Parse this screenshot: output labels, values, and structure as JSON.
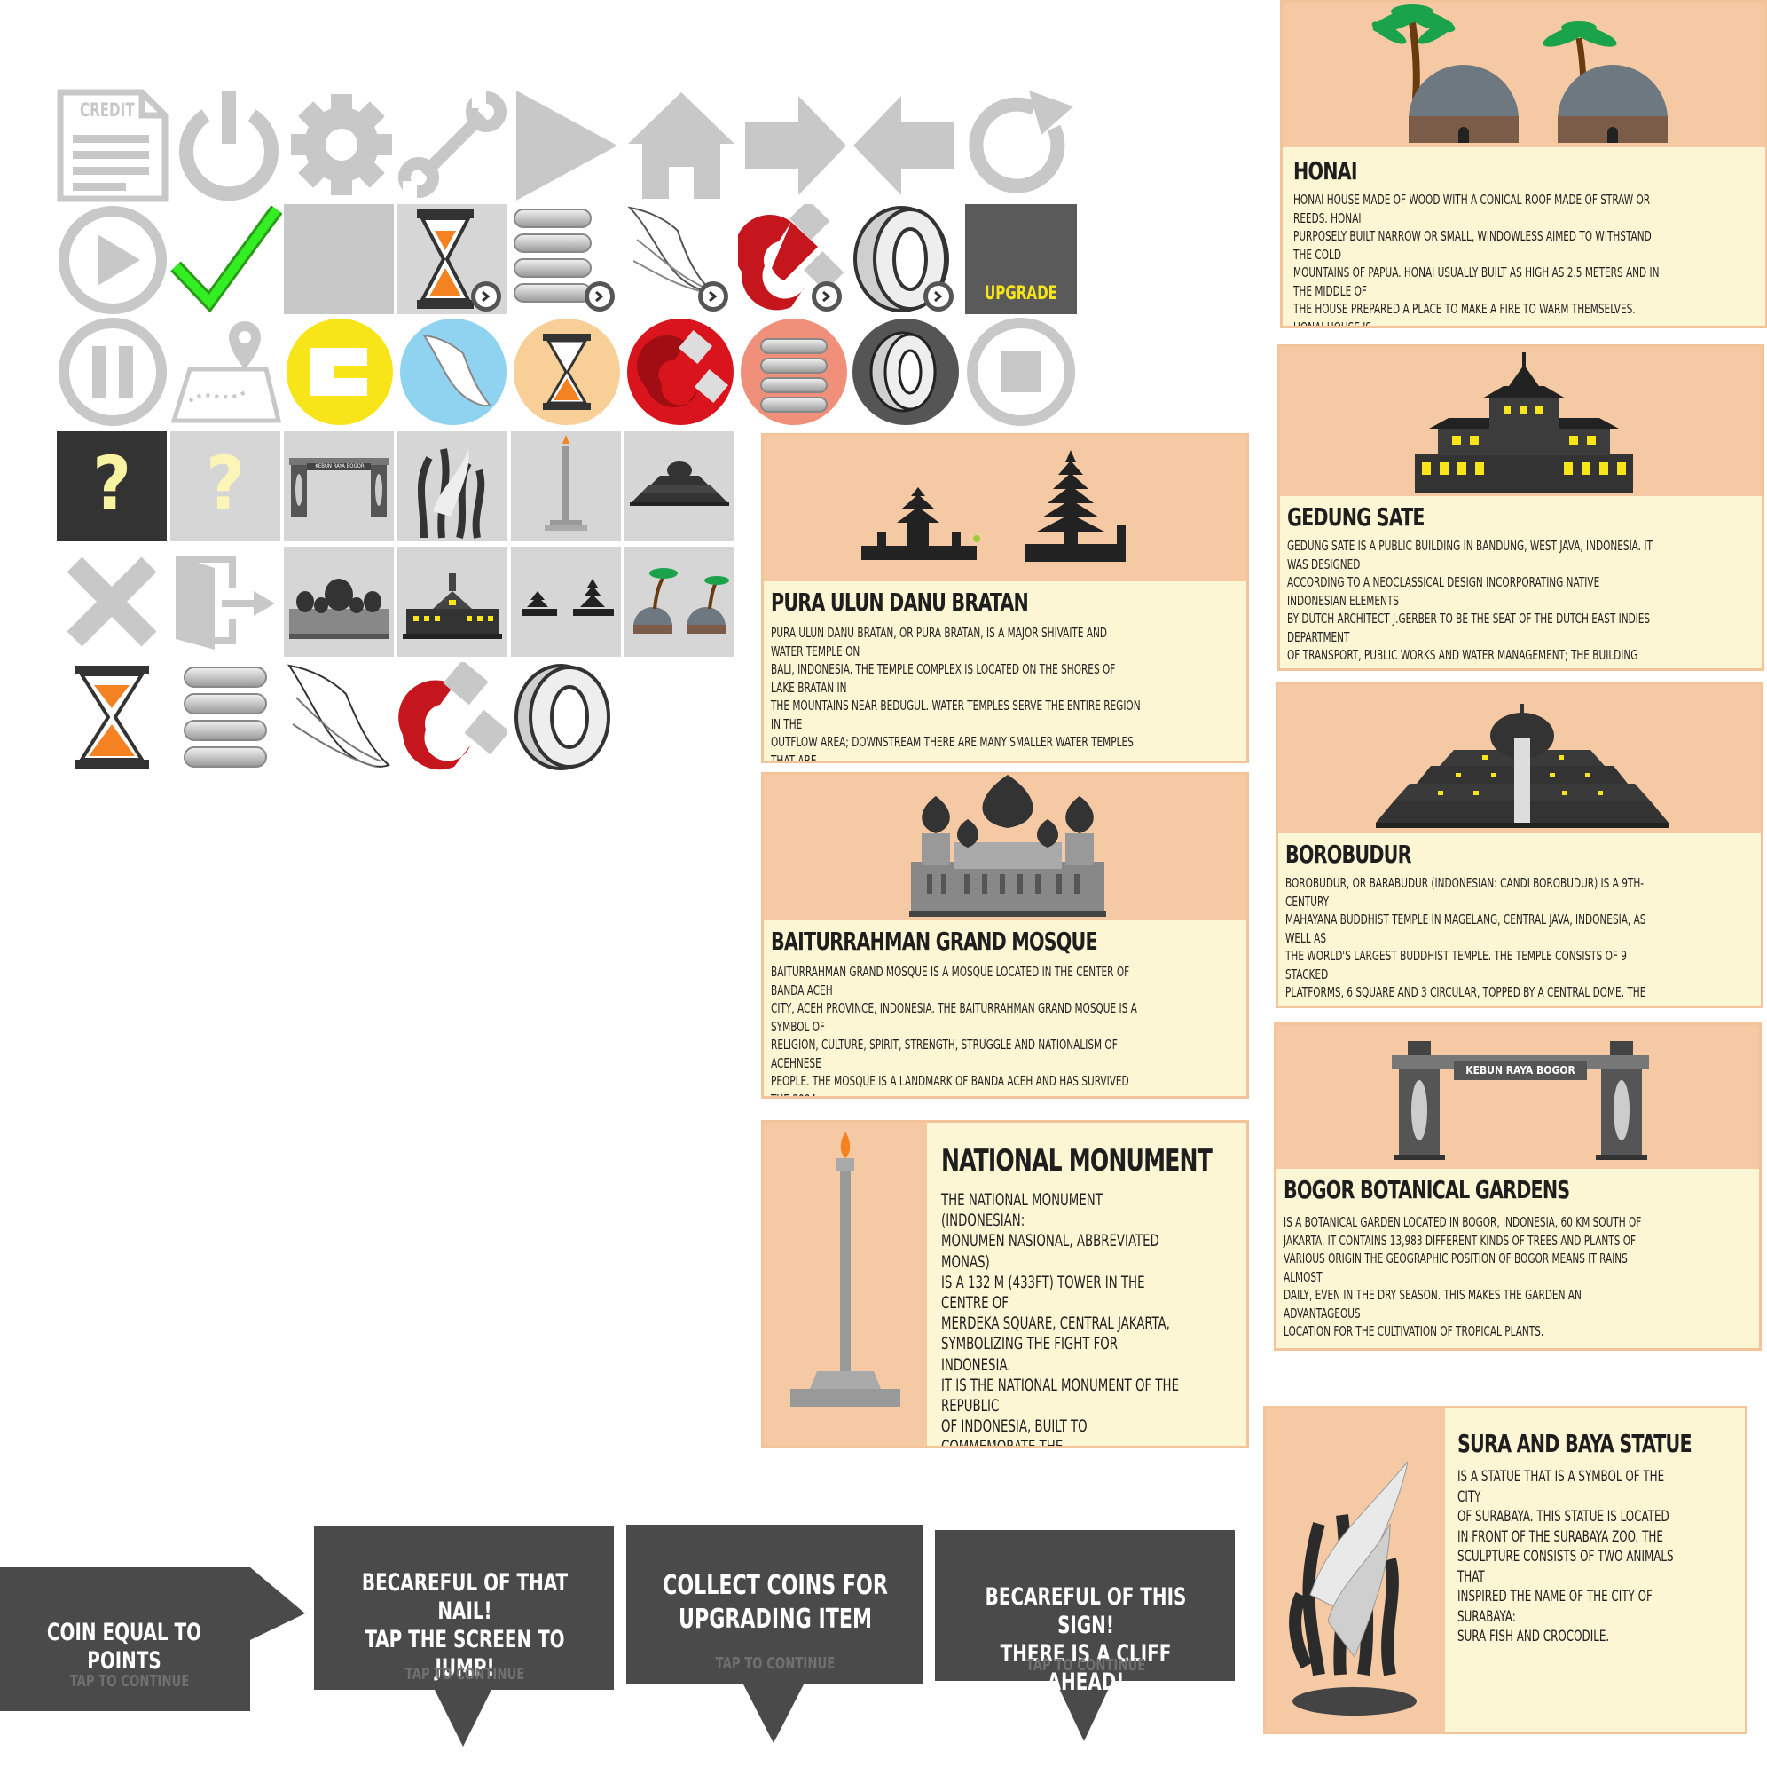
{
  "icons": {
    "credit_label": "CREDIT",
    "upgrade_label": "UPGRADE",
    "question_mark": "?",
    "colors": {
      "gray": "#c8c8c8",
      "dark": "#555555",
      "green": "#33dd22",
      "orange": "#f58220",
      "red": "#c4161c",
      "yellow": "#f7e51a",
      "sky": "#8fd3f0",
      "peach": "#f7cf97",
      "salmon": "#f0907a"
    }
  },
  "thumbnails": {
    "bogor_gate_label": "KEBUN RAYA BOGOR"
  },
  "cards": {
    "honai": {
      "title": "HONAI",
      "text": "HONAI HOUSE MADE OF WOOD WITH A CONICAL ROOF MADE OF STRAW OR REEDS. HONAI\nPURPOSELY BUILT NARROW OR SMALL, WINDOWLESS AIMED TO WITHSTAND THE COLD\nMOUNTAINS OF PAPUA. HONAI USUALLY BUILT AS HIGH AS 2.5 METERS AND IN THE MIDDLE OF\nTHE HOUSE PREPARED A PLACE TO MAKE A FIRE TO WARM THEMSELVES. HONAI HOUSE IS\nDIVIDED INTO THREE TYPES, NAMELY FOR MEN (CALLED HONAI), WOMEN (CALLED EBEI),\nAND PIGSTIES (CALLED WAMAI)."
    },
    "gedung_sate": {
      "title": "GEDUNG SATE",
      "text": "GEDUNG SATE IS A PUBLIC BUILDING IN BANDUNG, WEST JAVA, INDONESIA. IT WAS DESIGNED\nACCORDING TO A NEOCLASSICAL DESIGN INCORPORATING NATIVE INDONESIAN ELEMENTS\nBY DUTCH ARCHITECT J.GERBER TO BE THE SEAT OF THE DUTCH EAST INDIES DEPARTMENT\nOF TRANSPORT, PUBLIC WORKS AND WATER MANAGEMENT; THE BUILDING WAS COMPLETED\nIN 1920. TODAY, THE BUILDING SERVES AS THE SEAT OF THE GOVERNOR OF THE PROVINCE\nOF WEST JAVA."
    },
    "borobudur": {
      "title": "BOROBUDUR",
      "text": "BOROBUDUR, OR BARABUDUR (INDONESIAN: CANDI BOROBUDUR) IS A 9TH-CENTURY\nMAHAYANA BUDDHIST TEMPLE IN MAGELANG, CENTRAL JAVA, INDONESIA, AS WELL AS\nTHE WORLD'S LARGEST BUDDHIST TEMPLE. THE TEMPLE CONSISTS OF 9 STACKED\nPLATFORMS, 6 SQUARE AND 3 CIRCULAR, TOPPED BY A CENTRAL DOME. THE TEMPLE IS\nDECORATED WITH 2,672 RELIEF PANELS AND 504 BUDDHA STATUES. THE CENTRAL DOME\nIS SURROUNDED BY 72 BUDDHA STATUES, EACH SEATED INSIDE A PERFORATED STUPA."
    },
    "bogor": {
      "title": "BOGOR BOTANICAL GARDENS",
      "gate_label": "KEBUN RAYA BOGOR",
      "text": "IS A BOTANICAL GARDEN LOCATED IN BOGOR, INDONESIA, 60 KM SOUTH OF\nJAKARTA. IT CONTAINS 13,983 DIFFERENT KINDS OF TREES AND PLANTS OF\nVARIOUS ORIGIN THE GEOGRAPHIC POSITION OF BOGOR MEANS IT RAINS ALMOST\nDAILY, EVEN IN THE DRY SEASON. THIS MAKES THE GARDEN AN ADVANTAGEOUS\nLOCATION FOR THE CULTIVATION OF TROPICAL PLANTS."
    },
    "sura_baya": {
      "title": "SURA AND BAYA STATUE",
      "text": "IS A STATUE THAT IS A SYMBOL OF THE CITY\nOF SURABAYA. THIS STATUE IS LOCATED\nIN FRONT OF THE SURABAYA ZOO. THE\nSCULPTURE CONSISTS OF TWO ANIMALS THAT\nINSPIRED THE NAME OF THE CITY OF SURABAYA:\nSURA FISH AND CROCODILE."
    },
    "pura": {
      "title": "PURA ULUN DANU BRATAN",
      "text": "PURA ULUN DANU BRATAN, OR PURA BRATAN, IS A MAJOR SHIVAITE AND WATER TEMPLE ON\nBALI, INDONESIA. THE TEMPLE COMPLEX IS LOCATED ON THE SHORES OF LAKE BRATAN IN\nTHE MOUNTAINS NEAR BEDUGUL. WATER TEMPLES SERVE THE ENTIRE REGION IN THE\nOUTFLOW AREA; DOWNSTREAM THERE ARE MANY SMALLER WATER TEMPLES THAT ARE\nSPECIFIC TO EACH IRRIGATION ASSOCIATION (SUBAK)."
    },
    "baiturrahman": {
      "title": "BAITURRAHMAN GRAND MOSQUE",
      "text": "BAITURRAHMAN GRAND MOSQUE IS A MOSQUE LOCATED IN THE CENTER OF BANDA ACEH\nCITY, ACEH PROVINCE, INDONESIA. THE BAITURRAHMAN GRAND MOSQUE IS A SYMBOL OF\nRELIGION, CULTURE, SPIRIT, STRENGTH, STRUGGLE AND NATIONALISM OF ACEHNESE\nPEOPLE. THE MOSQUE IS A LANDMARK OF BANDA ACEH AND HAS SURVIVED THE 2004\nINDIAN OCEAN TSUNAMI."
    },
    "monas": {
      "title": "NATIONAL MONUMENT",
      "text": "THE NATIONAL MONUMENT (INDONESIAN:\nMONUMEN NASIONAL, ABBREVIATED MONAS)\nIS A 132 M (433FT) TOWER IN THE CENTRE OF\nMERDEKA SQUARE, CENTRAL JAKARTA,\nSYMBOLIZING THE FIGHT FOR INDONESIA.\nIT IS THE NATIONAL MONUMENT OF THE REPUBLIC\nOF INDONESIA, BUILT TO COMMEMORATE THE\nSTRUGGLE FOR INDONESIAN INDEPENDENCE."
    }
  },
  "tips": [
    {
      "text": "COIN EQUAL TO POINTS",
      "tap": "TAP TO CONTINUE"
    },
    {
      "text": "BECAREFUL OF THAT NAIL!\nTAP THE SCREEN TO\nJUMP!",
      "tap": "TAP TO CONTINUE"
    },
    {
      "text": "COLLECT COINS FOR\nUPGRADING ITEM",
      "tap": "TAP TO CONTINUE"
    },
    {
      "text": "BECAREFUL OF THIS SIGN!\nTHERE IS A CLIFF AHEAD!",
      "tap": "TAP TO CONTINUE"
    }
  ]
}
